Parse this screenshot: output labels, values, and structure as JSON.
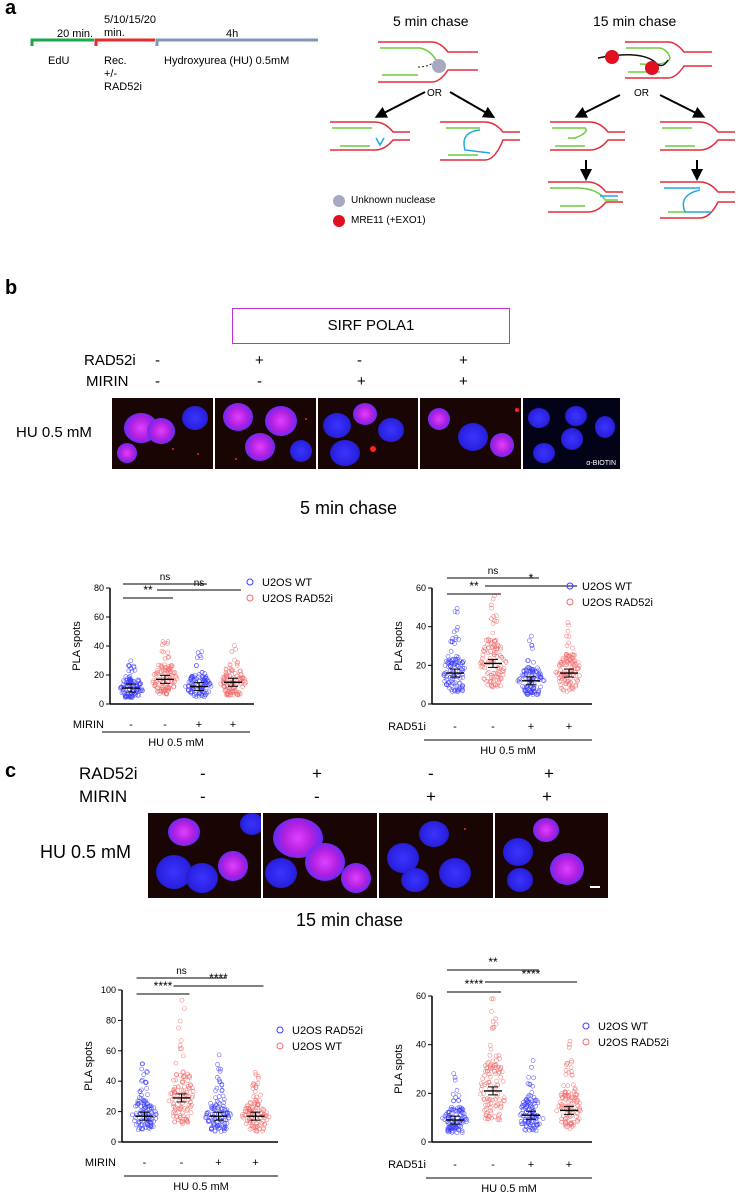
{
  "panels": {
    "a": "a",
    "b": "b",
    "c": "c"
  },
  "timeline": {
    "edu_time": "20 min.",
    "edu_label": "EdU",
    "rec_time_1": "5/10/15/20",
    "rec_time_2": "min.",
    "rec_label_1": "Rec.",
    "rec_label_2": "+/-",
    "rec_label_3": "RAD52i",
    "hu_time": "4h",
    "hu_label": "Hydroxyurea  (HU) 0.5mM"
  },
  "schematic": {
    "chase5_title": "5 min chase",
    "chase15_title": "15 min chase",
    "or": "OR",
    "legend_unknown": "Unknown nuclease",
    "legend_mre11": "MRE11 (+EXO1)"
  },
  "panel_b": {
    "title_box": "SIRF POLA1",
    "row1_label": "RAD52i",
    "row2_label": "MIRIN",
    "row1_signs": [
      "-",
      "+",
      "-",
      "+"
    ],
    "row2_signs": [
      "-",
      "-",
      "+",
      "+"
    ],
    "hu_label": "HU 0.5 mM",
    "biotin_label": "α-BIOTIN",
    "chase_title": "5 min chase"
  },
  "panel_c": {
    "row1_label": "RAD52i",
    "row2_label": "MIRIN",
    "row1_signs": [
      "-",
      "+",
      "-",
      "+"
    ],
    "row2_signs": [
      "-",
      "-",
      "+",
      "+"
    ],
    "hu_label": "HU 0.5 mM",
    "chase_title": "15 min chase"
  },
  "chart_data": [
    {
      "type": "scatter",
      "ylabel": "PLA spots",
      "ylim": [
        0,
        80
      ],
      "yticks": [
        "0",
        "20",
        "40",
        "60",
        "80"
      ],
      "treatment_label": "MIRIN",
      "treatment_signs": [
        "-",
        "-",
        "+",
        "+"
      ],
      "hu_label": "HU 0.5 mM",
      "categories": [
        "U2OS WT -",
        "U2OS RAD52i -",
        "U2OS WT +",
        "U2OS RAD52i +"
      ],
      "series": [
        {
          "name": "U2OS WT",
          "color": "#3d3dff",
          "means": [
            11,
            null,
            12,
            null
          ]
        },
        {
          "name": "U2OS RAD52i",
          "color": "#f26b6b",
          "means": [
            null,
            17,
            null,
            15
          ]
        }
      ],
      "legend": [
        "U2OS WT",
        "U2OS RAD52i"
      ],
      "significance": [
        {
          "label": "ns"
        },
        {
          "label": "**"
        },
        {
          "label": "ns"
        }
      ]
    },
    {
      "type": "scatter",
      "ylabel": "PLA spots",
      "ylim": [
        0,
        60
      ],
      "yticks": [
        "0",
        "20",
        "40",
        "60"
      ],
      "treatment_label": "RAD51i",
      "treatment_signs": [
        "-",
        "-",
        "+",
        "+"
      ],
      "hu_label": "HU 0.5 mM",
      "categories": [
        "U2OS WT -",
        "U2OS RAD52i -",
        "U2OS WT +",
        "U2OS RAD52i +"
      ],
      "series": [
        {
          "name": "U2OS WT",
          "color": "#3d3dff",
          "means": [
            16,
            null,
            12,
            null
          ]
        },
        {
          "name": "U2OS RAD52i",
          "color": "#f26b6b",
          "means": [
            null,
            21,
            null,
            16
          ]
        }
      ],
      "legend": [
        "U2OS WT",
        "U2OS RAD52i"
      ],
      "significance": [
        {
          "label": "ns"
        },
        {
          "label": "**"
        },
        {
          "label": "*"
        }
      ]
    },
    {
      "type": "scatter",
      "ylabel": "PLA spots",
      "ylim": [
        0,
        100
      ],
      "yticks": [
        "0",
        "20",
        "40",
        "60",
        "80",
        "100"
      ],
      "treatment_label": "MIRIN",
      "treatment_signs": [
        "-",
        "-",
        "+",
        "+"
      ],
      "hu_label": "HU 0.5 mM",
      "categories": [
        "U2OS RAD52i -",
        "U2OS WT -",
        "U2OS RAD52i +",
        "U2OS WT +"
      ],
      "series": [
        {
          "name": "U2OS RAD52i",
          "color": "#3d3dff",
          "means": [
            17,
            null,
            17,
            null
          ]
        },
        {
          "name": "U2OS WT",
          "color": "#f26b6b",
          "means": [
            null,
            29,
            null,
            17
          ]
        }
      ],
      "legend": [
        "U2OS RAD52i",
        "U2OS WT"
      ],
      "significance": [
        {
          "label": "ns"
        },
        {
          "label": "****"
        },
        {
          "label": "****"
        }
      ]
    },
    {
      "type": "scatter",
      "ylabel": "PLA spots",
      "ylim": [
        0,
        60
      ],
      "yticks": [
        "0",
        "20",
        "40",
        "60"
      ],
      "treatment_label": "RAD51i",
      "treatment_signs": [
        "-",
        "-",
        "+",
        "+"
      ],
      "hu_label": "HU 0.5 mM",
      "categories": [
        "U2OS WT -",
        "U2OS RAD52i -",
        "U2OS WT +",
        "U2OS RAD52i +"
      ],
      "series": [
        {
          "name": "U2OS WT",
          "color": "#3d3dff",
          "means": [
            9,
            null,
            11,
            null
          ]
        },
        {
          "name": "U2OS RAD52i",
          "color": "#f26b6b",
          "means": [
            null,
            21,
            null,
            13
          ]
        }
      ],
      "legend": [
        "U2OS WT",
        "U2OS RAD52i"
      ],
      "significance": [
        {
          "label": "**"
        },
        {
          "label": "****"
        },
        {
          "label": "****"
        }
      ]
    }
  ]
}
